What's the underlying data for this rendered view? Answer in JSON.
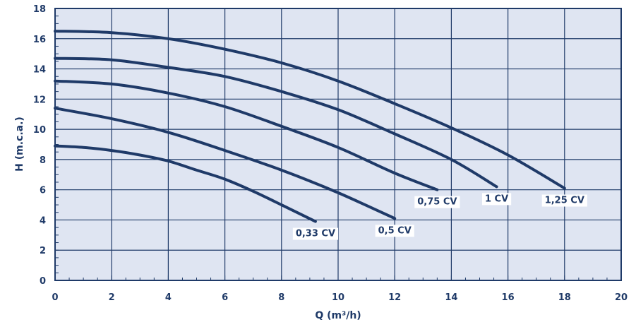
{
  "chart_data": {
    "type": "line",
    "title": "",
    "xlabel": "Q (m³/h)",
    "ylabel": "H (m.c.a.)",
    "xlim": [
      0,
      20
    ],
    "ylim": [
      0,
      18
    ],
    "xticks": [
      0,
      2,
      4,
      6,
      8,
      10,
      12,
      14,
      16,
      18,
      20
    ],
    "yticks": [
      0,
      2,
      4,
      6,
      8,
      10,
      12,
      14,
      16,
      18
    ],
    "grid": true,
    "legend": "none",
    "series": [
      {
        "name": "0,33 CV",
        "x": [
          0,
          1,
          2,
          3,
          4,
          5,
          6,
          7,
          8,
          9.2
        ],
        "y": [
          8.9,
          8.8,
          8.6,
          8.3,
          7.9,
          7.3,
          6.7,
          5.9,
          5.0,
          3.9
        ]
      },
      {
        "name": "0,5 CV",
        "x": [
          0,
          2,
          4,
          6,
          8,
          10,
          12
        ],
        "y": [
          11.4,
          10.7,
          9.8,
          8.6,
          7.3,
          5.8,
          4.1
        ]
      },
      {
        "name": "0,75 CV",
        "x": [
          0,
          2,
          4,
          6,
          8,
          10,
          12,
          13.5
        ],
        "y": [
          13.2,
          13.0,
          12.4,
          11.5,
          10.2,
          8.8,
          7.1,
          6.0
        ]
      },
      {
        "name": "1 CV",
        "x": [
          0,
          2,
          4,
          6,
          8,
          10,
          12,
          14,
          15.6
        ],
        "y": [
          14.7,
          14.6,
          14.1,
          13.5,
          12.5,
          11.3,
          9.7,
          8.0,
          6.2
        ]
      },
      {
        "name": "1,25 CV",
        "x": [
          0,
          2,
          4,
          6,
          8,
          10,
          12,
          14,
          16,
          18
        ],
        "y": [
          16.5,
          16.4,
          16.0,
          15.3,
          14.4,
          13.2,
          11.7,
          10.1,
          8.3,
          6.1
        ]
      }
    ]
  },
  "style": {
    "plot_bg": "#dfe5f2",
    "line_color": "#1f3a68",
    "grid_color": "#1f3a68",
    "label_bg": "#ffffff"
  }
}
